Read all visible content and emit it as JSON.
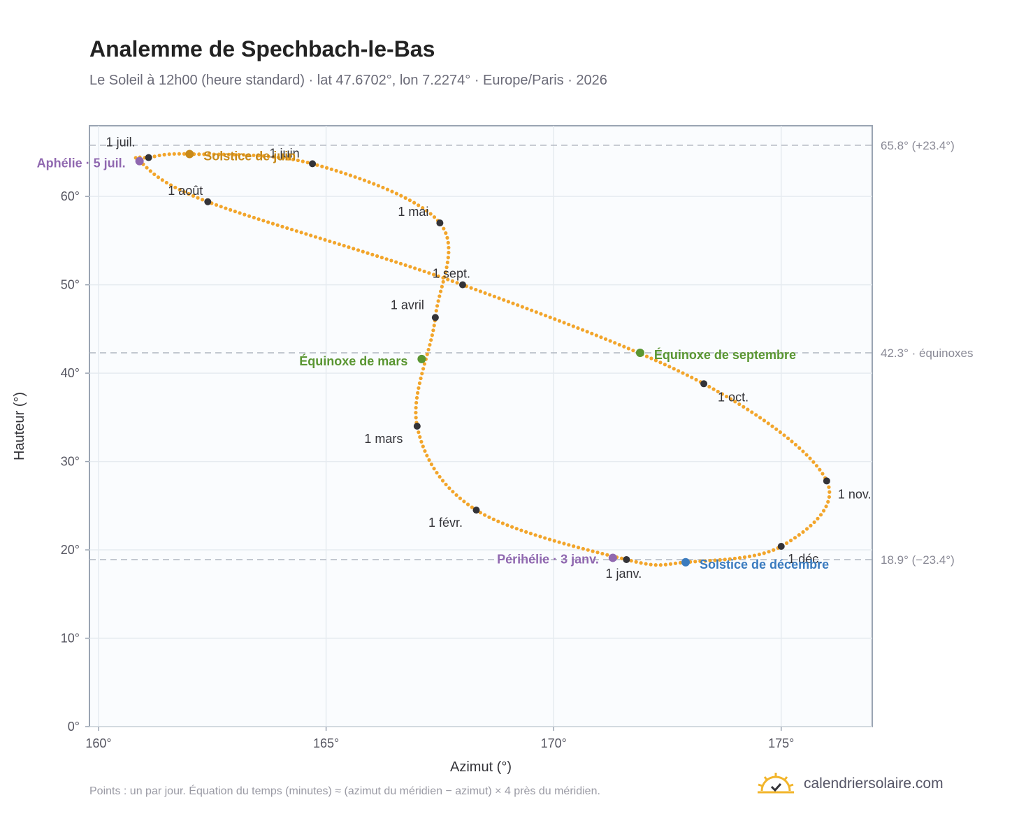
{
  "header": {
    "title": "Analemme de Spechbach-le-Bas",
    "subtitle": "Le Soleil à 12h00 (heure standard) · lat 47.6702°, lon 7.2274° · Europe/Paris · 2026"
  },
  "footer": {
    "note": "Points : un par jour. Équation du temps (minutes) ≈ (azimut du méridien − azimut) × 4 près du méridien.",
    "brand": "calendriersolaire.com"
  },
  "colors": {
    "curve": "#f2a52b",
    "month_marker": "#333338",
    "solstice_june": "#c88a1a",
    "solstice_december": "#3a7bbf",
    "equinox": "#5a9632",
    "apsis": "#9068b0",
    "brand_sun": "#f2b52b"
  },
  "chart_data": {
    "type": "scatter",
    "xlabel": "Azimut (°)",
    "ylabel": "Hauteur (°)",
    "xlim": [
      159.8,
      177
    ],
    "ylim": [
      0,
      68
    ],
    "x_ticks": [
      160,
      165,
      170,
      175
    ],
    "y_ticks": [
      0,
      10,
      20,
      30,
      40,
      50,
      60
    ],
    "x_tick_labels": [
      "160°",
      "165°",
      "170°",
      "175°"
    ],
    "y_tick_labels": [
      "0°",
      "10°",
      "20°",
      "30°",
      "40°",
      "50°",
      "60°"
    ],
    "grid": true,
    "months": [
      {
        "label": "1 janv.",
        "az": 171.6,
        "alt": 18.9
      },
      {
        "label": "1 févr.",
        "az": 168.3,
        "alt": 24.5
      },
      {
        "label": "1 mars",
        "az": 167.0,
        "alt": 34.0
      },
      {
        "label": "1 avril",
        "az": 167.4,
        "alt": 46.3
      },
      {
        "label": "1 mai",
        "az": 167.5,
        "alt": 57.0
      },
      {
        "label": "1 juin",
        "az": 164.7,
        "alt": 63.7
      },
      {
        "label": "1 juil.",
        "az": 161.1,
        "alt": 64.4
      },
      {
        "label": "1 août",
        "az": 162.4,
        "alt": 59.4
      },
      {
        "label": "1 sept.",
        "az": 168.0,
        "alt": 50.0
      },
      {
        "label": "1 oct.",
        "az": 173.3,
        "alt": 38.8
      },
      {
        "label": "1 nov.",
        "az": 176.0,
        "alt": 27.8
      },
      {
        "label": "1 déc.",
        "az": 175.0,
        "alt": 20.4
      }
    ],
    "events": [
      {
        "label": "Solstice de juin",
        "az": 162.0,
        "alt": 64.8,
        "kind": "solstice_june"
      },
      {
        "label": "Solstice de décembre",
        "az": 172.9,
        "alt": 18.6,
        "kind": "solstice_december"
      },
      {
        "label": "Équinoxe de mars",
        "az": 167.1,
        "alt": 41.6,
        "kind": "equinox"
      },
      {
        "label": "Équinoxe de septembre",
        "az": 171.9,
        "alt": 42.3,
        "kind": "equinox"
      },
      {
        "label": "Aphélie · 5 juil.",
        "az": 160.9,
        "alt": 64.0,
        "kind": "apsis"
      },
      {
        "label": "Périhélie · 3 janv.",
        "az": 171.3,
        "alt": 19.1,
        "kind": "apsis"
      }
    ],
    "reference_lines": [
      {
        "alt": 65.8,
        "label": "65.8° (+23.4°)"
      },
      {
        "alt": 42.3,
        "label": "42.3° · équinoxes"
      },
      {
        "alt": 18.9,
        "label": "18.9° (−23.4°)"
      }
    ]
  }
}
